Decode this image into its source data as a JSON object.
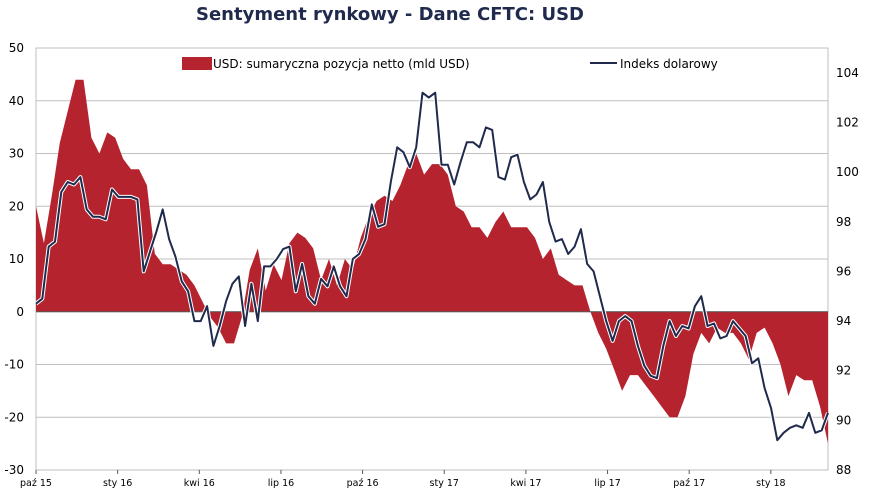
{
  "chart_data": {
    "type": "area",
    "title": "Sentyment rynkowy - Dane CFTC:  USD",
    "legend_position": "top",
    "grid": true,
    "colors": {
      "area": "#b5232e",
      "line": "#1f2a4d",
      "grid": "#bfbfbf",
      "title": "#1f2a4d"
    },
    "x_tick_labels": [
      "paź 15",
      "sty 16",
      "kwi 16",
      "lip 16",
      "paź 16",
      "sty 17",
      "kwi 17",
      "lip 17",
      "paź 17",
      "sty 18"
    ],
    "y_left": {
      "ticks": [
        50,
        40,
        30,
        20,
        10,
        0,
        -10,
        -20,
        -30
      ],
      "lim": [
        -30,
        50
      ]
    },
    "y_right": {
      "ticks": [
        104,
        102,
        100,
        98,
        96,
        94,
        92,
        90,
        88
      ],
      "lim": [
        88,
        105
      ]
    },
    "series": [
      {
        "name": "USD: sumaryczna pozycja netto (mld USD)",
        "kind": "area",
        "axis": "left",
        "values": [
          20,
          13,
          22,
          32,
          38,
          44,
          44,
          33,
          30,
          34,
          33,
          29,
          27,
          27,
          24,
          11,
          9,
          9,
          8,
          7,
          5,
          2,
          -1,
          -3,
          -6,
          -6,
          -1,
          8,
          12,
          4,
          9,
          6,
          13,
          15,
          14,
          12,
          6,
          10,
          5,
          10,
          8,
          14,
          18,
          21,
          22,
          21,
          24,
          28,
          30,
          26,
          28,
          28,
          26,
          20,
          19,
          16,
          16,
          14,
          17,
          19,
          16,
          16,
          16,
          14,
          10,
          12,
          7,
          6,
          5,
          5,
          0,
          -4,
          -7,
          -11,
          -15,
          -12,
          -12,
          -14,
          -16,
          -18,
          -20,
          -20,
          -16,
          -8,
          -4,
          -6,
          -3,
          -4,
          -4,
          -6,
          -9,
          -4,
          -3,
          -6,
          -10,
          -16,
          -12,
          -13,
          -13,
          -18,
          -25
        ]
      },
      {
        "name": "Indeks dolarowy",
        "kind": "line",
        "axis": "right",
        "values": [
          94.7,
          94.9,
          97.0,
          97.2,
          99.2,
          99.6,
          99.5,
          99.8,
          98.5,
          98.2,
          98.2,
          98.1,
          99.3,
          99.0,
          99.0,
          99.0,
          98.9,
          96.0,
          96.8,
          97.6,
          98.5,
          97.3,
          96.6,
          95.6,
          95.2,
          94.0,
          94.0,
          94.6,
          93.0,
          93.8,
          94.8,
          95.5,
          95.8,
          93.8,
          95.5,
          94.0,
          96.2,
          96.2,
          96.5,
          96.9,
          97.0,
          95.2,
          96.3,
          95.0,
          94.7,
          95.7,
          95.4,
          96.2,
          95.4,
          95.0,
          96.5,
          96.7,
          97.3,
          98.7,
          97.8,
          97.9,
          99.6,
          101.0,
          100.8,
          100.2,
          101.0,
          103.2,
          103.0,
          103.2,
          100.3,
          100.3,
          99.5,
          100.4,
          101.2,
          101.2,
          101.0,
          101.8,
          101.7,
          99.8,
          99.7,
          100.6,
          100.7,
          99.6,
          98.9,
          99.1,
          99.6,
          98.0,
          97.2,
          97.3,
          96.7,
          97.0,
          97.7,
          96.3,
          96.0,
          95.0,
          94.0,
          93.2,
          94.0,
          94.2,
          94.0,
          93.0,
          92.2,
          91.8,
          91.7,
          93.0,
          94.0,
          93.4,
          93.8,
          93.7,
          94.6,
          95.0,
          93.8,
          93.9,
          93.3,
          93.4,
          94.0,
          93.7,
          93.4,
          92.3,
          92.5,
          91.3,
          90.5,
          89.2,
          89.5,
          89.7,
          89.8,
          89.7,
          90.3,
          89.5,
          89.6,
          90.3
        ]
      }
    ]
  }
}
